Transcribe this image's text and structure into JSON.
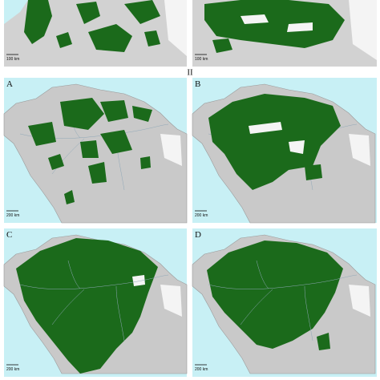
{
  "top_panels": [
    {
      "scale": "100 km"
    },
    {
      "scale": "100 km"
    }
  ],
  "section_label": "II",
  "panels": [
    {
      "label": "A",
      "scale": "200 km"
    },
    {
      "label": "B",
      "scale": "200 km"
    },
    {
      "label": "C",
      "scale": "200 km"
    },
    {
      "label": "D",
      "scale": "200 km"
    }
  ]
}
